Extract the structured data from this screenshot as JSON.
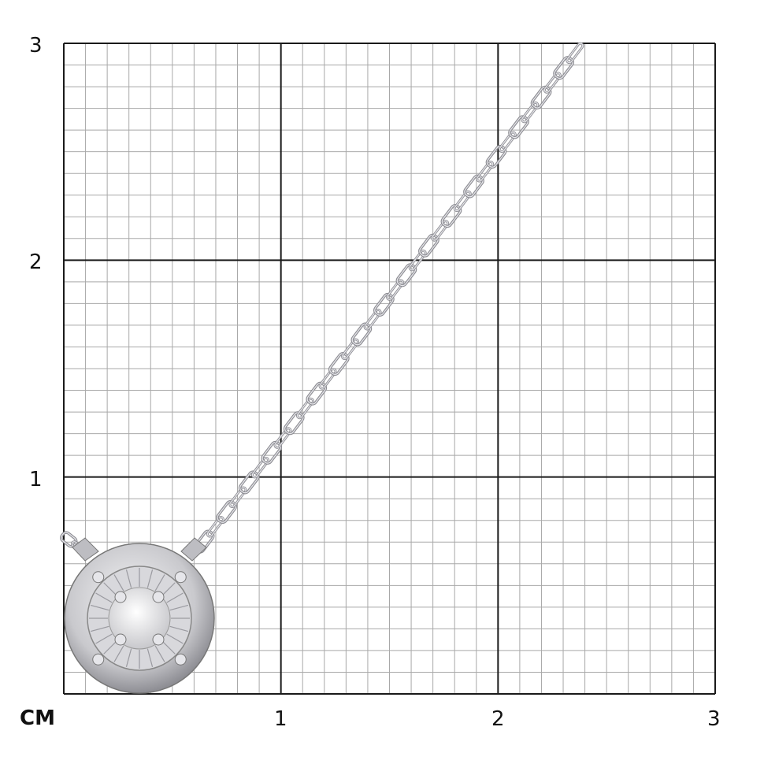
{
  "scale": {
    "unit_label": "CM",
    "x_ticks": [
      "1",
      "2",
      "3"
    ],
    "y_ticks": [
      "1",
      "2",
      "3"
    ],
    "range_cm": [
      0,
      3
    ],
    "minor_divisions_per_cm": 10
  },
  "colors": {
    "major_grid": "#1a1a1a",
    "minor_grid": "#a8a8a8",
    "metal": "#c8c8cc"
  },
  "product": {
    "type": "pendant necklace with round stone on cable chain"
  }
}
